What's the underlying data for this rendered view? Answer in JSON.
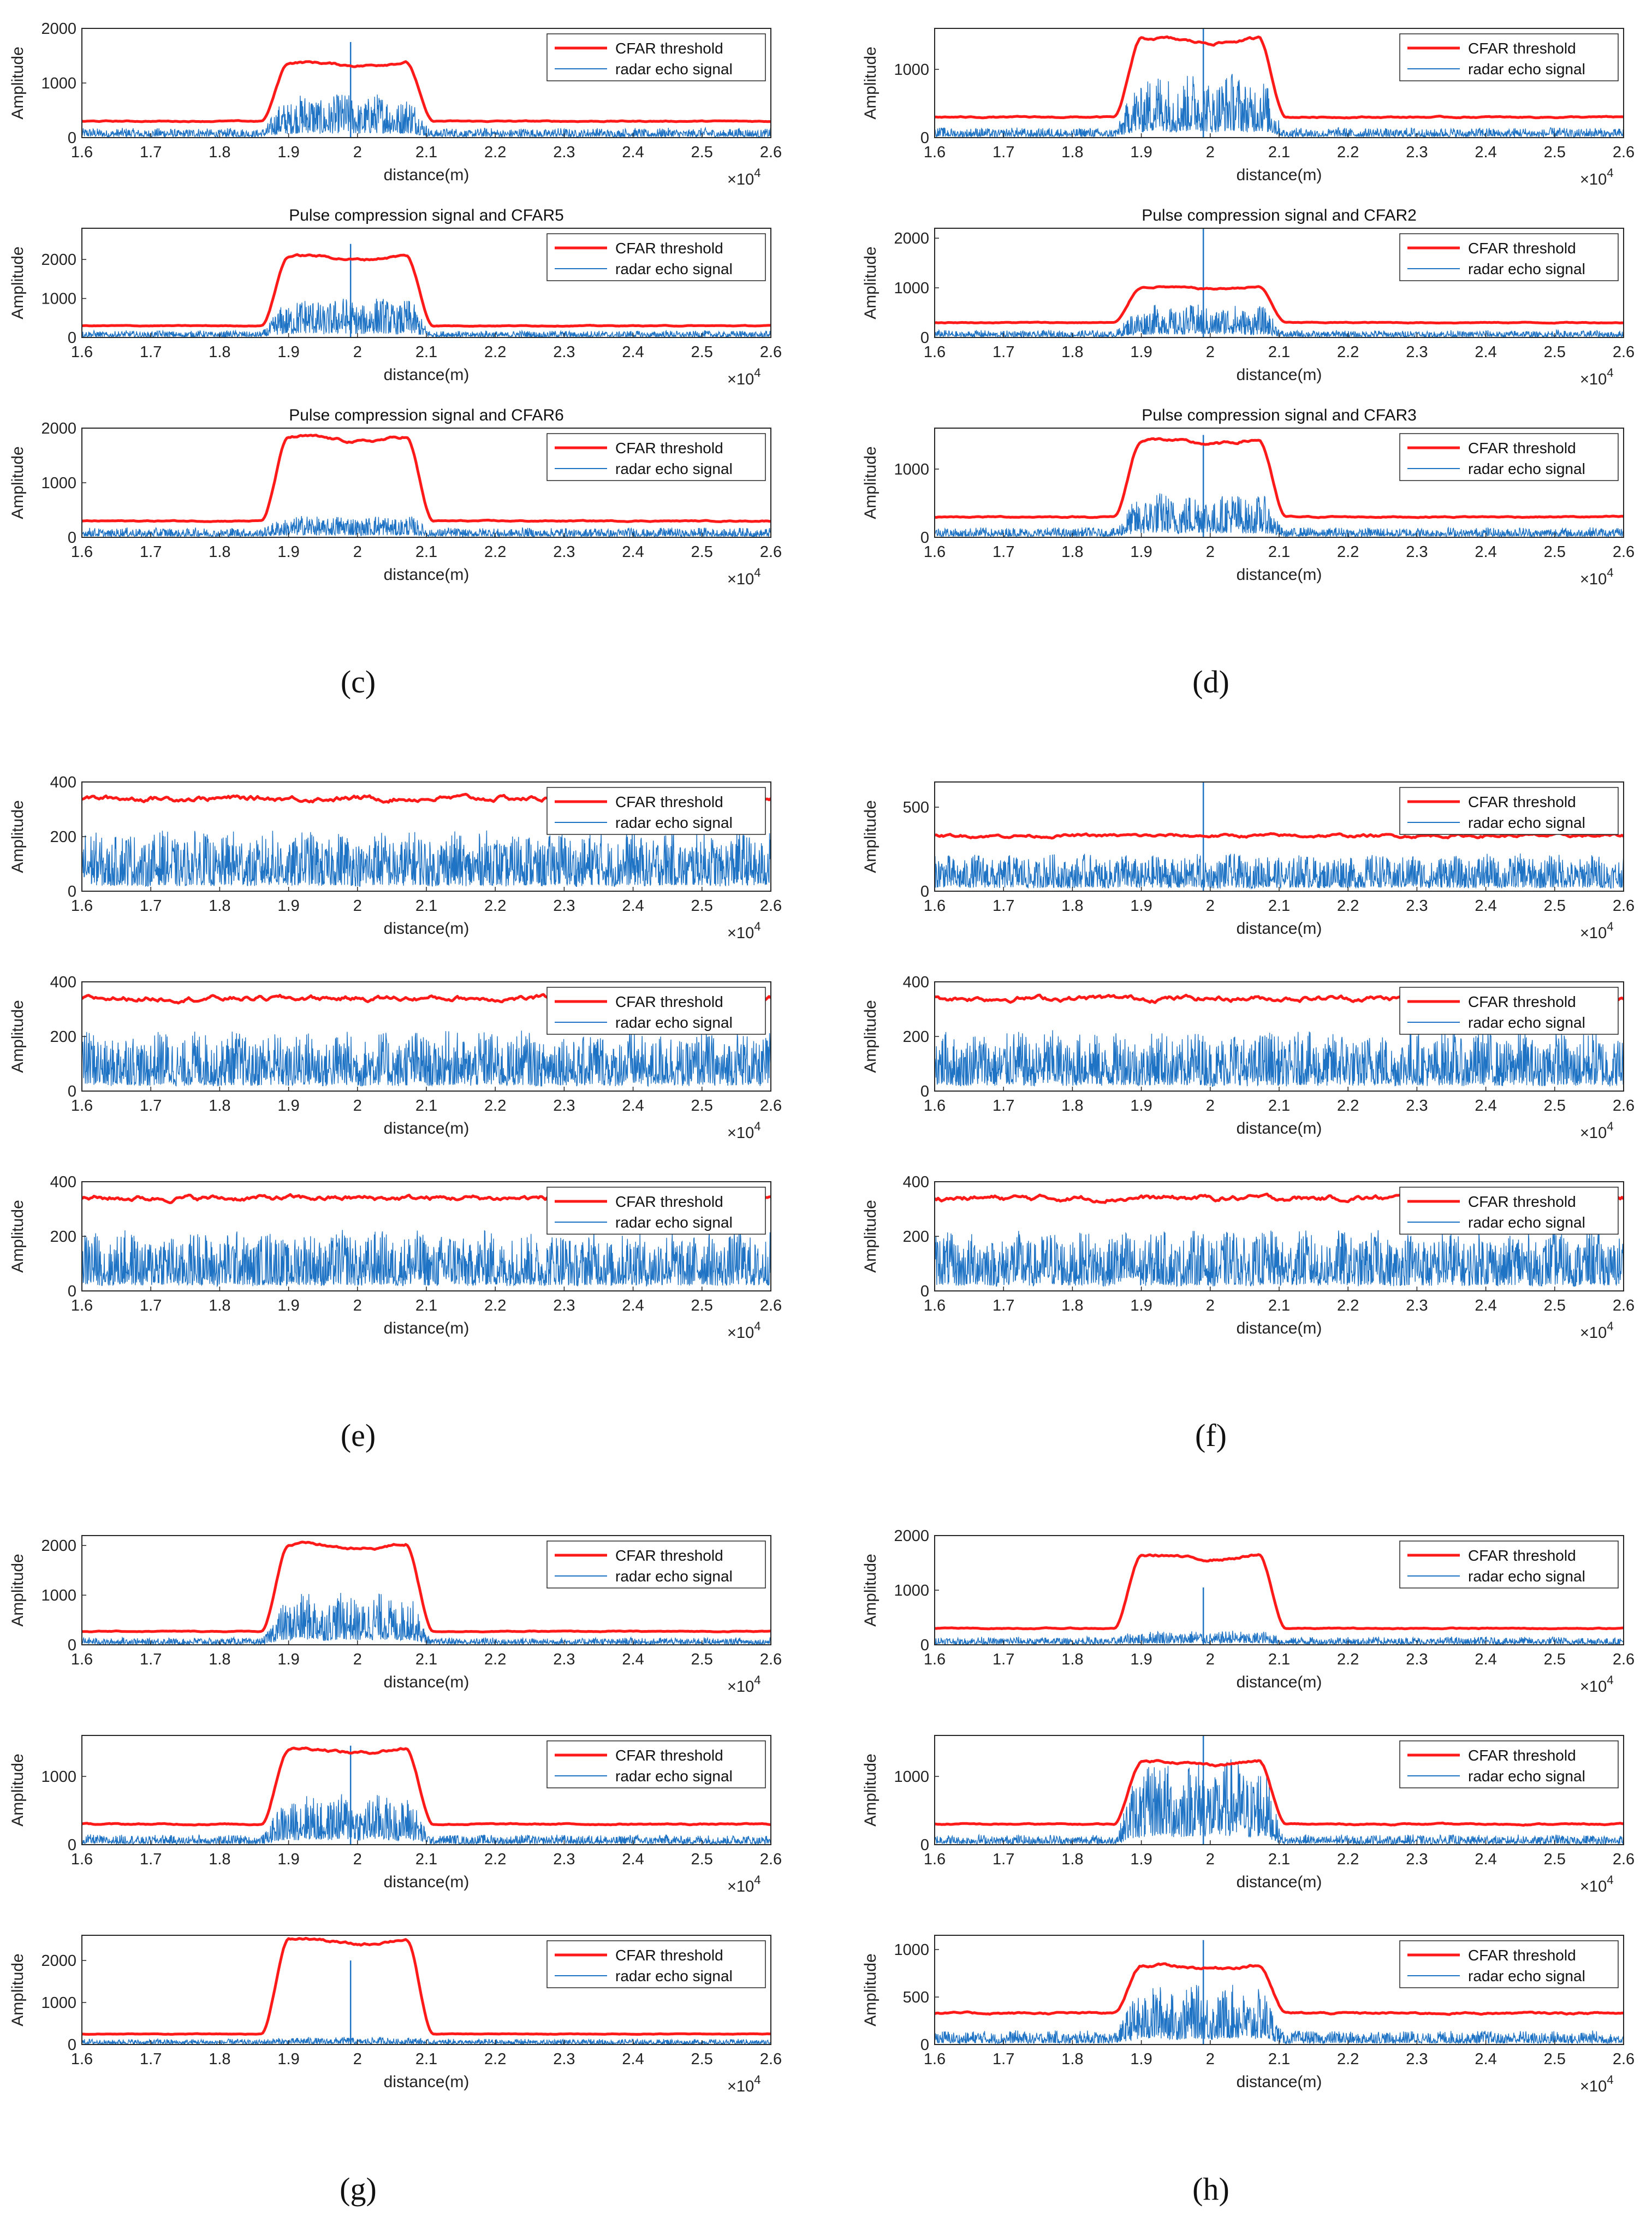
{
  "figure": {
    "panels": [
      "(c)",
      "(d)",
      "(e)",
      "(f)",
      "(g)",
      "(h)"
    ]
  },
  "colors": {
    "threshold": "#ff1a1a",
    "echo": "#1f73c4",
    "axis": "#262626"
  },
  "common": {
    "xlabel": "distance(m)",
    "ylabel": "Amplitude",
    "x_multiplier_base": "×10",
    "x_multiplier_exp": "4",
    "x_ticks": [
      "1.6",
      "1.7",
      "1.8",
      "1.9",
      "2",
      "2.1",
      "2.2",
      "2.3",
      "2.4",
      "2.5",
      "2.6"
    ],
    "legend": [
      "CFAR threshold",
      "radar echo signal"
    ]
  },
  "chart_data": [
    {
      "type": "line",
      "panel": "c",
      "row": 1,
      "title": "",
      "x_range": [
        1.6,
        2.6
      ],
      "ylim": [
        0,
        2000
      ],
      "yticks": [
        0,
        1000,
        2000
      ],
      "target_x": 1.99,
      "threshold_base": 300,
      "threshold_plateau": 1350,
      "echo_base": 120,
      "echo_plateau": 550,
      "spike": 1750
    },
    {
      "type": "line",
      "panel": "c",
      "row": 2,
      "title": "Pulse compression signal and CFAR5",
      "x_range": [
        1.6,
        2.6
      ],
      "ylim": [
        0,
        2800
      ],
      "yticks": [
        0,
        1000,
        2000
      ],
      "target_x": 1.99,
      "threshold_base": 300,
      "threshold_plateau": 2050,
      "echo_base": 120,
      "echo_plateau": 700,
      "spike": 2400
    },
    {
      "type": "line",
      "panel": "c",
      "row": 3,
      "title": "Pulse compression signal and CFAR6",
      "x_range": [
        1.6,
        2.6
      ],
      "ylim": [
        0,
        2000
      ],
      "yticks": [
        0,
        1000,
        2000
      ],
      "target_x": 1.99,
      "threshold_base": 300,
      "threshold_plateau": 1800,
      "echo_base": 120,
      "echo_plateau": 280,
      "spike": 0
    },
    {
      "type": "line",
      "panel": "d",
      "row": 1,
      "title": "",
      "x_range": [
        1.6,
        2.6
      ],
      "ylim": [
        0,
        1600
      ],
      "yticks": [
        0,
        1000
      ],
      "target_x": 1.99,
      "threshold_base": 300,
      "threshold_plateau": 1420,
      "echo_base": 100,
      "echo_plateau": 650,
      "spike": 1600
    },
    {
      "type": "line",
      "panel": "d",
      "row": 2,
      "title": "Pulse compression signal and CFAR2",
      "x_range": [
        1.6,
        2.6
      ],
      "ylim": [
        0,
        2200
      ],
      "yticks": [
        0,
        1000,
        2000
      ],
      "target_x": 1.99,
      "threshold_base": 300,
      "threshold_plateau": 1000,
      "echo_base": 100,
      "echo_plateau": 450,
      "spike": 2200
    },
    {
      "type": "line",
      "panel": "d",
      "row": 3,
      "title": "Pulse compression signal and CFAR3",
      "x_range": [
        1.6,
        2.6
      ],
      "ylim": [
        0,
        1600
      ],
      "yticks": [
        0,
        1000
      ],
      "target_x": 1.99,
      "threshold_base": 300,
      "threshold_plateau": 1400,
      "echo_base": 100,
      "echo_plateau": 450,
      "spike": 1500
    },
    {
      "type": "line",
      "panel": "e",
      "row": 1,
      "title": "",
      "x_range": [
        1.6,
        2.6
      ],
      "ylim": [
        0,
        400
      ],
      "yticks": [
        0,
        200,
        400
      ],
      "target_x": 1.99,
      "threshold_base": 340,
      "threshold_plateau": 340,
      "echo_base": 150,
      "echo_plateau": 150,
      "spike": 0
    },
    {
      "type": "line",
      "panel": "e",
      "row": 2,
      "title": "",
      "x_range": [
        1.6,
        2.6
      ],
      "ylim": [
        0,
        400
      ],
      "yticks": [
        0,
        200,
        400
      ],
      "target_x": 1.99,
      "threshold_base": 340,
      "threshold_plateau": 340,
      "echo_base": 150,
      "echo_plateau": 150,
      "spike": 0
    },
    {
      "type": "line",
      "panel": "e",
      "row": 3,
      "title": "",
      "x_range": [
        1.6,
        2.6
      ],
      "ylim": [
        0,
        400
      ],
      "yticks": [
        0,
        200,
        400
      ],
      "target_x": 1.99,
      "threshold_base": 340,
      "threshold_plateau": 340,
      "echo_base": 150,
      "echo_plateau": 150,
      "spike": 0
    },
    {
      "type": "line",
      "panel": "f",
      "row": 1,
      "title": "",
      "x_range": [
        1.6,
        2.6
      ],
      "ylim": [
        0,
        650
      ],
      "yticks": [
        0,
        500
      ],
      "target_x": 1.99,
      "threshold_base": 330,
      "threshold_plateau": 330,
      "echo_base": 150,
      "echo_plateau": 150,
      "spike": 650
    },
    {
      "type": "line",
      "panel": "f",
      "row": 2,
      "title": "",
      "x_range": [
        1.6,
        2.6
      ],
      "ylim": [
        0,
        400
      ],
      "yticks": [
        0,
        200,
        400
      ],
      "target_x": 1.99,
      "threshold_base": 340,
      "threshold_plateau": 340,
      "echo_base": 150,
      "echo_plateau": 150,
      "spike": 0
    },
    {
      "type": "line",
      "panel": "f",
      "row": 3,
      "title": "",
      "x_range": [
        1.6,
        2.6
      ],
      "ylim": [
        0,
        400
      ],
      "yticks": [
        0,
        200,
        400
      ],
      "target_x": 1.99,
      "threshold_base": 340,
      "threshold_plateau": 340,
      "echo_base": 150,
      "echo_plateau": 150,
      "spike": 0
    },
    {
      "type": "line",
      "panel": "g",
      "row": 1,
      "title": "",
      "x_range": [
        1.6,
        2.6
      ],
      "ylim": [
        0,
        2200
      ],
      "yticks": [
        0,
        1000,
        2000
      ],
      "target_x": 1.99,
      "threshold_base": 270,
      "threshold_plateau": 1980,
      "echo_base": 100,
      "echo_plateau": 700,
      "spike": 0
    },
    {
      "type": "line",
      "panel": "g",
      "row": 2,
      "title": "",
      "x_range": [
        1.6,
        2.6
      ],
      "ylim": [
        0,
        1600
      ],
      "yticks": [
        0,
        1000
      ],
      "target_x": 1.99,
      "threshold_base": 300,
      "threshold_plateau": 1380,
      "echo_base": 100,
      "echo_plateau": 500,
      "spike": 1450
    },
    {
      "type": "line",
      "panel": "g",
      "row": 3,
      "title": "",
      "x_range": [
        1.6,
        2.6
      ],
      "ylim": [
        0,
        2600
      ],
      "yticks": [
        0,
        1000,
        2000
      ],
      "target_x": 1.99,
      "threshold_base": 250,
      "threshold_plateau": 2450,
      "echo_base": 90,
      "echo_plateau": 120,
      "spike": 2000
    },
    {
      "type": "line",
      "panel": "h",
      "row": 1,
      "title": "",
      "x_range": [
        1.6,
        2.6
      ],
      "ylim": [
        0,
        2000
      ],
      "yticks": [
        0,
        1000,
        2000
      ],
      "target_x": 1.99,
      "threshold_base": 300,
      "threshold_plateau": 1600,
      "echo_base": 100,
      "echo_plateau": 180,
      "spike": 1050
    },
    {
      "type": "line",
      "panel": "h",
      "row": 2,
      "title": "",
      "x_range": [
        1.6,
        2.6
      ],
      "ylim": [
        0,
        1600
      ],
      "yticks": [
        0,
        1000
      ],
      "target_x": 1.99,
      "threshold_base": 300,
      "threshold_plateau": 1200,
      "echo_base": 100,
      "echo_plateau": 850,
      "spike": 1600
    },
    {
      "type": "line",
      "panel": "h",
      "row": 3,
      "title": "",
      "x_range": [
        1.6,
        2.6
      ],
      "ylim": [
        0,
        1150
      ],
      "yticks": [
        0,
        500,
        1000
      ],
      "target_x": 1.99,
      "threshold_base": 330,
      "threshold_plateau": 820,
      "echo_base": 100,
      "echo_plateau": 420,
      "spike": 1100
    }
  ]
}
